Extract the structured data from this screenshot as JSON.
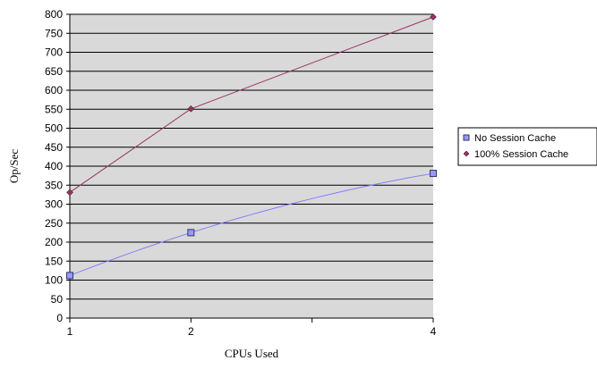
{
  "chart_data": {
    "type": "line",
    "x": [
      1,
      2,
      4
    ],
    "x_tick_labels": [
      "1",
      "2",
      "4"
    ],
    "xlabel": "CPUs Used",
    "ylabel": "Op/Sec",
    "ylim": [
      0,
      800
    ],
    "y_ticks": [
      0,
      50,
      100,
      150,
      200,
      250,
      300,
      350,
      400,
      450,
      500,
      550,
      600,
      650,
      700,
      750,
      800
    ],
    "grid": true,
    "legend_position": "right",
    "plot_background": "#d9d9d9",
    "series": [
      {
        "name": "No Session Cache",
        "values": [
          112,
          225,
          381
        ],
        "color": "#8080ff",
        "marker": "square",
        "marker_color": "#9999ff"
      },
      {
        "name": "100% Session Cache",
        "values": [
          331,
          551,
          793
        ],
        "color": "#993366",
        "marker": "diamond",
        "marker_color": "#993366"
      }
    ]
  }
}
